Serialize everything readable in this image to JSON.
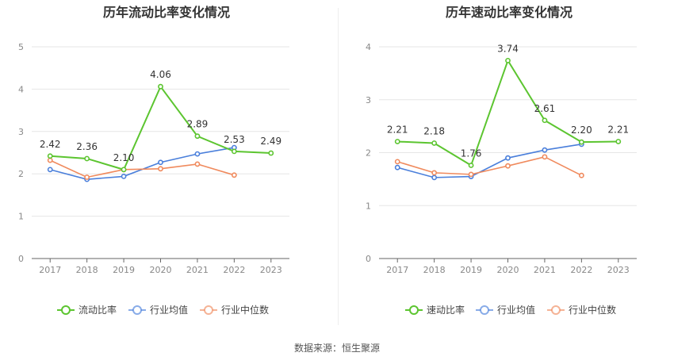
{
  "colors": {
    "green": "#5cc530",
    "blue": "#4a7fdb",
    "orange": "#f08a5d",
    "grid": "#e6e6e6",
    "axis": "#666666",
    "tick_text": "#888888"
  },
  "footer": {
    "source": "数据来源：恒生聚源"
  },
  "chart_data": [
    {
      "type": "line",
      "title": "历年流动比率变化情况",
      "xlabel": "",
      "ylabel": "",
      "categories": [
        "2017",
        "2018",
        "2019",
        "2020",
        "2021",
        "2022",
        "2023"
      ],
      "ylim": [
        0,
        5
      ],
      "yticks": [
        0,
        1,
        2,
        3,
        4,
        5
      ],
      "grid": true,
      "legend": "bottom",
      "series": [
        {
          "name": "流动比率",
          "color": "green",
          "values": [
            2.42,
            2.36,
            2.1,
            4.06,
            2.89,
            2.53,
            2.49
          ],
          "labels": [
            "2.42",
            "2.36",
            "2.10",
            "4.06",
            "2.89",
            "2.53",
            "2.49"
          ]
        },
        {
          "name": "行业均值",
          "color": "blue",
          "values": [
            2.1,
            1.87,
            1.94,
            2.27,
            2.47,
            2.62,
            null
          ]
        },
        {
          "name": "行业中位数",
          "color": "orange",
          "values": [
            2.32,
            1.92,
            2.1,
            2.12,
            2.23,
            1.97,
            null
          ]
        }
      ]
    },
    {
      "type": "line",
      "title": "历年速动比率变化情况",
      "xlabel": "",
      "ylabel": "",
      "categories": [
        "2017",
        "2018",
        "2019",
        "2020",
        "2021",
        "2022",
        "2023"
      ],
      "ylim": [
        0,
        4
      ],
      "yticks": [
        0,
        1,
        2,
        3,
        4
      ],
      "grid": true,
      "legend": "bottom",
      "series": [
        {
          "name": "速动比率",
          "color": "green",
          "values": [
            2.21,
            2.18,
            1.76,
            3.74,
            2.61,
            2.2,
            2.21
          ],
          "labels": [
            "2.21",
            "2.18",
            "1.76",
            "3.74",
            "2.61",
            "2.20",
            "2.21"
          ]
        },
        {
          "name": "行业均值",
          "color": "blue",
          "values": [
            1.72,
            1.53,
            1.55,
            1.9,
            2.05,
            2.16,
            null
          ]
        },
        {
          "name": "行业中位数",
          "color": "orange",
          "values": [
            1.83,
            1.62,
            1.59,
            1.75,
            1.92,
            1.57,
            null
          ]
        }
      ]
    }
  ]
}
